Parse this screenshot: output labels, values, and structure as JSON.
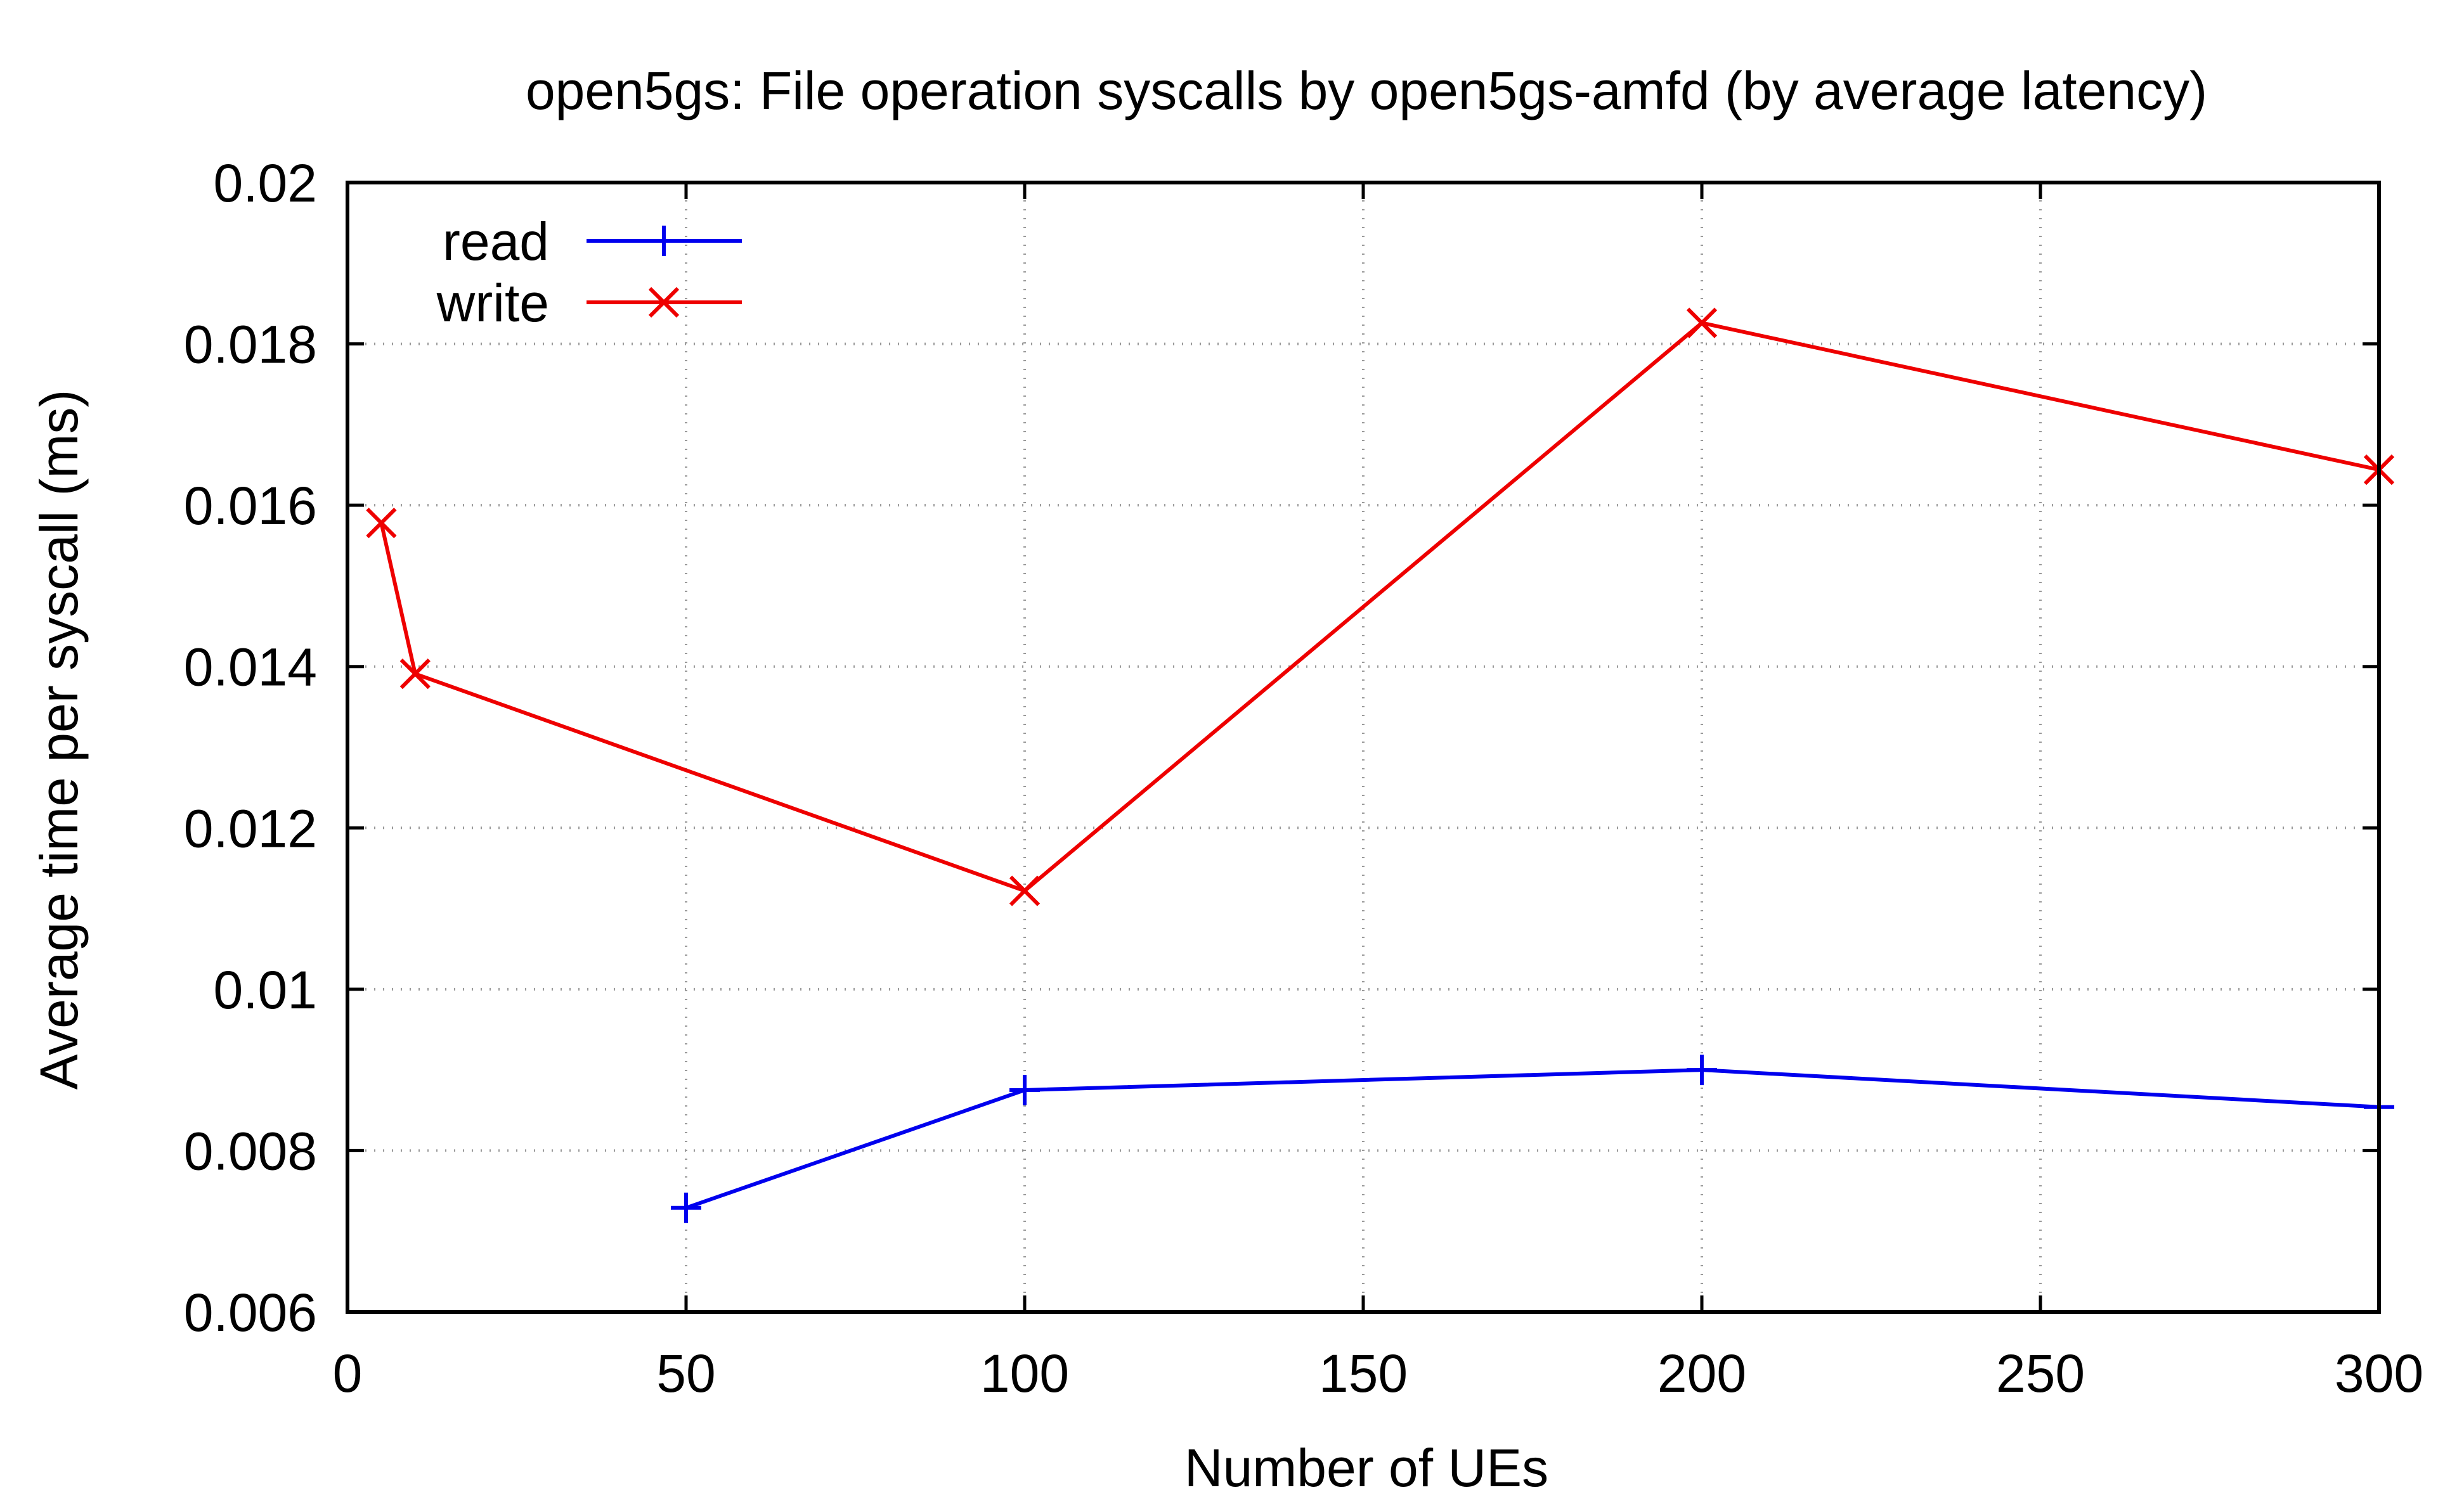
{
  "chart_data": {
    "type": "line",
    "title": "open5gs: File operation syscalls by open5gs-amfd (by average latency)",
    "xlabel": "Number of UEs",
    "ylabel": "Average time per syscall (ms)",
    "xlim": [
      0,
      300
    ],
    "ylim": [
      0.006,
      0.02
    ],
    "x_ticks": [
      0,
      50,
      100,
      150,
      200,
      250,
      300
    ],
    "x_tick_labels": [
      "0",
      "50",
      "100",
      "150",
      "200",
      "250",
      "300"
    ],
    "y_ticks": [
      0.006,
      0.008,
      0.01,
      0.012,
      0.014,
      0.016,
      0.018,
      0.02
    ],
    "y_tick_labels": [
      "0.006",
      "0.008",
      "0.01",
      "0.012",
      "0.014",
      "0.016",
      "0.018",
      "0.02"
    ],
    "grid": true,
    "legend_position": "top-left",
    "series": [
      {
        "name": "read",
        "color": "#0000ee",
        "marker": "plus",
        "x": [
          50,
          100,
          200,
          300
        ],
        "y": [
          0.00729,
          0.00875,
          0.009,
          0.00854
        ]
      },
      {
        "name": "write",
        "color": "#ee0000",
        "marker": "cross",
        "x": [
          5,
          10,
          100,
          200,
          300
        ],
        "y": [
          0.01578,
          0.01391,
          0.01122,
          0.01826,
          0.01644
        ]
      }
    ]
  }
}
